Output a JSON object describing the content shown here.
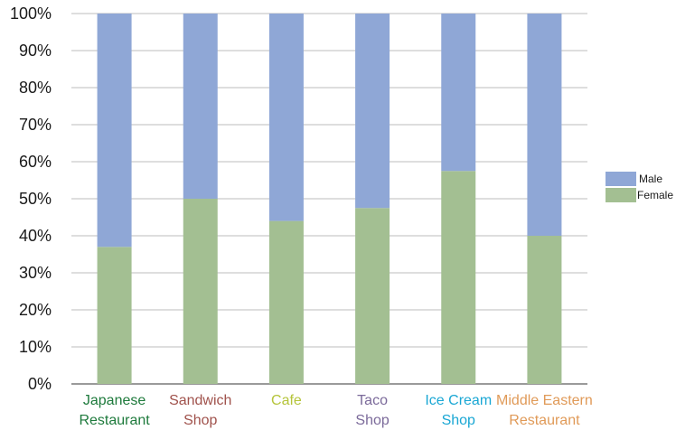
{
  "chart_data": {
    "type": "bar",
    "stacked": true,
    "percent_axis": true,
    "categories": [
      [
        "Japanese",
        "Restaurant"
      ],
      [
        "Sandwich",
        "Shop"
      ],
      [
        "Cafe"
      ],
      [
        "Taco",
        "Shop"
      ],
      [
        "Ice Cream",
        "Shop"
      ],
      [
        "Middle Eastern",
        "Restaurant"
      ]
    ],
    "category_colors": [
      "#1e7a3c",
      "#a0524c",
      "#b5c43a",
      "#7b6a9a",
      "#1aa7d4",
      "#e09a58"
    ],
    "series": [
      {
        "name": "Female",
        "color": "#a3bf92",
        "values": [
          37,
          50,
          44,
          47.5,
          57.5,
          40
        ]
      },
      {
        "name": "Male",
        "color": "#8fa7d6",
        "values": [
          63,
          50,
          56,
          52.5,
          42.5,
          60
        ]
      }
    ],
    "ylim": [
      0,
      100
    ],
    "yticks": [
      "0%",
      "10%",
      "20%",
      "30%",
      "40%",
      "50%",
      "60%",
      "70%",
      "80%",
      "90%",
      "100%"
    ],
    "grid": true,
    "legend": {
      "placement": "right",
      "entries": [
        "Male",
        "Female"
      ]
    },
    "title": "",
    "xlabel": "",
    "ylabel": ""
  }
}
